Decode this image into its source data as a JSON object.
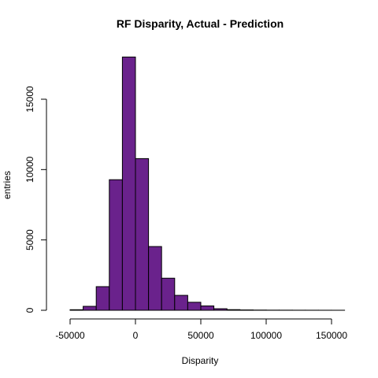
{
  "chart_data": {
    "type": "bar",
    "subtype": "histogram",
    "title": "RF Disparity, Actual - Prediction",
    "xlabel": "Disparity",
    "ylabel": "entries",
    "bin_width": 10000,
    "bin_starts": [
      -50000,
      -40000,
      -30000,
      -20000,
      -10000,
      0,
      10000,
      20000,
      30000,
      40000,
      50000,
      60000,
      70000,
      80000,
      90000,
      100000,
      110000,
      120000,
      130000,
      140000,
      150000
    ],
    "values": [
      40,
      280,
      1680,
      9280,
      18000,
      10780,
      4530,
      2280,
      1060,
      570,
      310,
      110,
      45,
      25,
      15,
      10,
      8,
      6,
      5,
      4,
      3
    ],
    "xlim": [
      -60000,
      160000
    ],
    "ylim": [
      0,
      18000
    ],
    "x_ticks": [
      -50000,
      0,
      50000,
      100000,
      150000
    ],
    "x_tick_labels": [
      "-50000",
      "0",
      "50000",
      "100000",
      "150000"
    ],
    "y_ticks": [
      0,
      5000,
      10000,
      15000
    ],
    "y_tick_labels": [
      "0",
      "5000",
      "10000",
      "15000"
    ],
    "bar_color": "#6a228c",
    "bar_border": "#000000",
    "grid": false,
    "legend": "none"
  }
}
